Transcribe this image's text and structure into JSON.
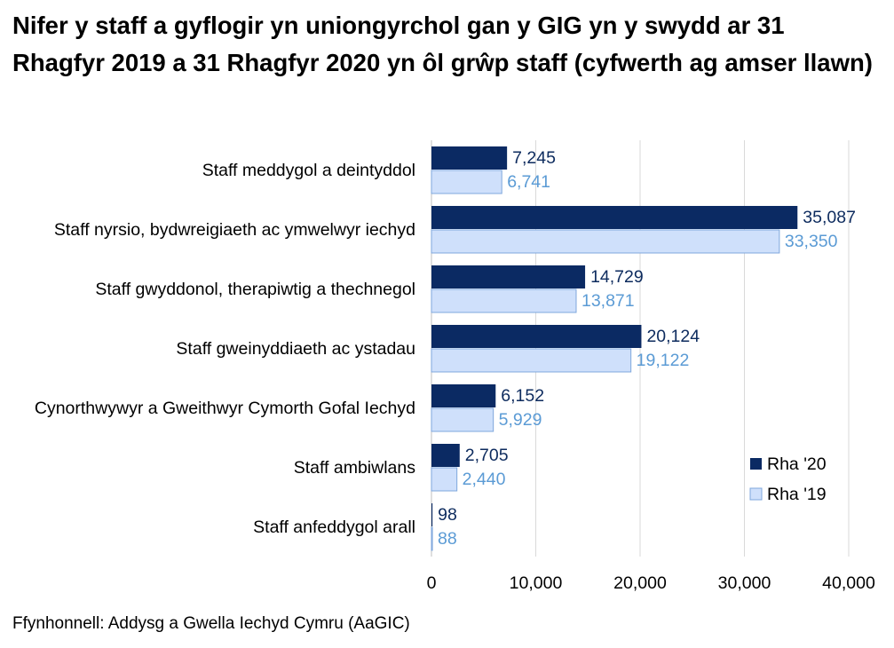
{
  "chart_data": {
    "type": "hbar",
    "title": "Nifer y staff a gyflogir yn uniongyrchol gan y GIG yn y swydd ar 31 Rhagfyr 2019 a 31 Rhagfyr 2020 yn ôl grŵp staff (cyfwerth ag amser llawn)",
    "categories": [
      "Staff meddygol a deintyddol",
      "Staff nyrsio, bydwreigiaeth ac ymwelwyr iechyd",
      "Staff gwyddonol, therapiwtig a thechnegol",
      "Staff gweinyddiaeth ac ystadau",
      "Cynorthwywyr a Gweithwyr Cymorth Gofal Iechyd",
      "Staff ambiwlans",
      "Staff anfeddygol arall"
    ],
    "series": [
      {
        "name": "Rha '20",
        "color": "#0b2a63",
        "label_color": "#0d2b5e",
        "values": [
          7245,
          35087,
          14729,
          20124,
          6152,
          2705,
          98
        ],
        "value_labels": [
          "7,245",
          "35,087",
          "14,729",
          "20,124",
          "6,152",
          "2,705",
          "98"
        ]
      },
      {
        "name": "Rha '19",
        "color": "#cfe0fb",
        "label_color": "#5b9bd5",
        "values": [
          6741,
          33350,
          13871,
          19122,
          5929,
          2440,
          88
        ],
        "value_labels": [
          "6,741",
          "33,350",
          "13,871",
          "19,122",
          "5,929",
          "2,440",
          "88"
        ]
      }
    ],
    "xlim": [
      0,
      40000
    ],
    "xticks": [
      0,
      {
        "value": 10000,
        "label": "10,000"
      },
      {
        "value": 20000,
        "label": "20,000"
      },
      {
        "value": 30000,
        "label": "30,000"
      },
      {
        "value": 40000,
        "label": "40,000"
      }
    ],
    "grid": true,
    "legend": "right",
    "source": "Ffynhonnell: Addysg a Gwella Iechyd Cymru (AaGIC)"
  }
}
